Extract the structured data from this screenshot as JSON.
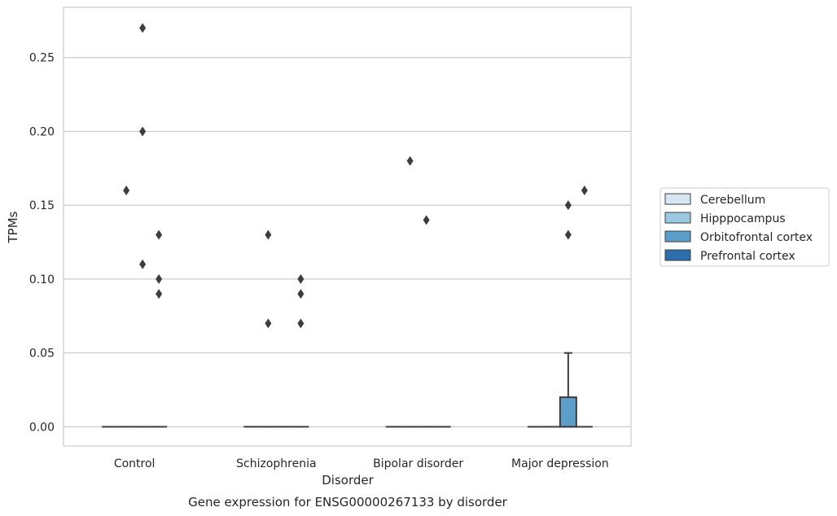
{
  "chart_data": {
    "type": "box",
    "title": "Gene expression for ENSG00000267133 by disorder",
    "xlabel": "Disorder",
    "ylabel": "TPMs",
    "ylim": [
      -0.013,
      0.284
    ],
    "yticks": [
      "0.00",
      "0.05",
      "0.10",
      "0.15",
      "0.20",
      "0.25"
    ],
    "ytick_values": [
      0.0,
      0.05,
      0.1,
      0.15,
      0.2,
      0.25
    ],
    "grid": true,
    "legend_position": "right",
    "categories": [
      "Control",
      "Schizophrenia",
      "Bipolar disorder",
      "Major depression"
    ],
    "series": [
      {
        "name": "Cerebellum",
        "color": "#d6e6f4",
        "boxes": [
          {
            "min": 0,
            "q1": 0,
            "median": 0,
            "q3": 0,
            "max": 0,
            "outliers": []
          },
          {
            "min": 0,
            "q1": 0,
            "median": 0,
            "q3": 0,
            "max": 0,
            "outliers": []
          },
          {
            "min": 0,
            "q1": 0,
            "median": 0,
            "q3": 0,
            "max": 0,
            "outliers": []
          },
          {
            "min": 0,
            "q1": 0,
            "median": 0,
            "q3": 0,
            "max": 0,
            "outliers": []
          }
        ]
      },
      {
        "name": "Hipppocampus",
        "color": "#9ac8e0",
        "boxes": [
          {
            "min": 0,
            "q1": 0,
            "median": 0,
            "q3": 0,
            "max": 0,
            "outliers": [
              0.16
            ]
          },
          {
            "min": 0,
            "q1": 0,
            "median": 0,
            "q3": 0,
            "max": 0,
            "outliers": [
              0.13,
              0.07
            ]
          },
          {
            "min": 0,
            "q1": 0,
            "median": 0,
            "q3": 0,
            "max": 0,
            "outliers": [
              0.18
            ]
          },
          {
            "min": 0,
            "q1": 0,
            "median": 0,
            "q3": 0,
            "max": 0,
            "outliers": []
          }
        ]
      },
      {
        "name": "Orbitofrontal cortex",
        "color": "#5a9ec9",
        "boxes": [
          {
            "min": 0,
            "q1": 0,
            "median": 0,
            "q3": 0,
            "max": 0,
            "outliers": [
              0.27,
              0.2,
              0.11
            ]
          },
          {
            "min": 0,
            "q1": 0,
            "median": 0,
            "q3": 0,
            "max": 0,
            "outliers": []
          },
          {
            "min": 0,
            "q1": 0,
            "median": 0,
            "q3": 0,
            "max": 0,
            "outliers": [
              0.14
            ]
          },
          {
            "min": 0,
            "q1": 0,
            "median": 0,
            "q3": 0.02,
            "max": 0.05,
            "outliers": [
              0.15,
              0.13
            ]
          }
        ]
      },
      {
        "name": "Prefrontal cortex",
        "color": "#2c6ea9",
        "boxes": [
          {
            "min": 0,
            "q1": 0,
            "median": 0,
            "q3": 0,
            "max": 0,
            "outliers": [
              0.13,
              0.1,
              0.09
            ]
          },
          {
            "min": 0,
            "q1": 0,
            "median": 0,
            "q3": 0,
            "max": 0,
            "outliers": [
              0.1,
              0.09,
              0.07
            ]
          },
          {
            "min": 0,
            "q1": 0,
            "median": 0,
            "q3": 0,
            "max": 0,
            "outliers": []
          },
          {
            "min": 0,
            "q1": 0,
            "median": 0,
            "q3": 0,
            "max": 0,
            "outliers": [
              0.16
            ]
          }
        ]
      }
    ]
  }
}
